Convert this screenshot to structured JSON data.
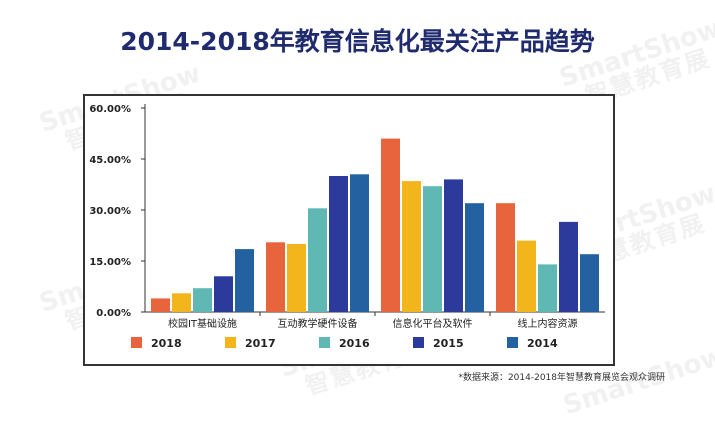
{
  "title": "2014-2018年教育信息化最关注产品趋势",
  "source_note": "*数据来源：2014-2018年智慧教育展览会观众调研",
  "watermark": {
    "brand": "SmartShow",
    "text": "智慧教育展"
  },
  "chart_data": {
    "type": "bar",
    "categories": [
      "校园IT基础设施",
      "互动教学硬件设备",
      "信息化平台及软件",
      "线上内容资源"
    ],
    "series": [
      {
        "name": "2018",
        "color": "#e8643c",
        "values": [
          4.0,
          20.5,
          51.0,
          32.0
        ]
      },
      {
        "name": "2017",
        "color": "#f3b51c",
        "values": [
          5.5,
          20.0,
          38.5,
          21.0
        ]
      },
      {
        "name": "2016",
        "color": "#5fb8b4",
        "values": [
          7.0,
          30.5,
          37.0,
          14.0
        ]
      },
      {
        "name": "2015",
        "color": "#2c3a9c",
        "values": [
          10.5,
          40.0,
          39.0,
          26.5
        ]
      },
      {
        "name": "2014",
        "color": "#2461a0",
        "values": [
          18.5,
          40.5,
          32.0,
          17.0
        ]
      }
    ],
    "yticks": [
      "0.00%",
      "15.00%",
      "30.00%",
      "45.00%",
      "60.00%"
    ],
    "ylim": [
      0,
      60
    ],
    "legend_position": "bottom",
    "grid": false
  }
}
